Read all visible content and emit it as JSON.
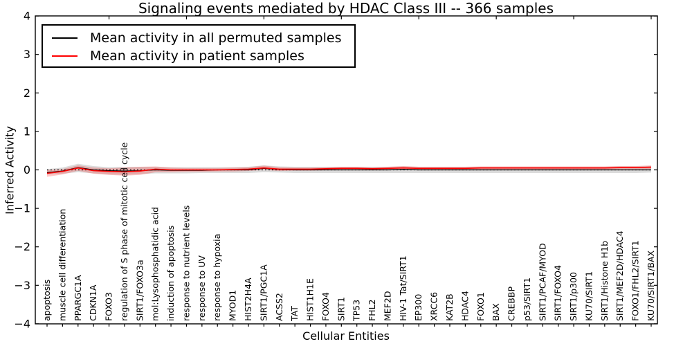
{
  "title": "Signaling events mediated by HDAC Class III -- 366 samples",
  "legend": {
    "items": [
      {
        "label": "Mean activity in all permuted samples",
        "color": "#000000"
      },
      {
        "label": "Mean activity in patient samples",
        "color": "#ff0000"
      }
    ]
  },
  "chart_data": {
    "type": "line",
    "title": "Signaling events mediated by HDAC Class III -- 366 samples",
    "xlabel": "Cellular Entities",
    "ylabel": "Inferred Activity",
    "ylim": [
      -4,
      4
    ],
    "yticks": [
      -4,
      -3,
      -2,
      -1,
      0,
      1,
      2,
      3,
      4
    ],
    "grid": false,
    "legend_position": "upper left",
    "categories": [
      "apoptosis",
      "muscle cell differentiation",
      "PPARGC1A",
      "CDKN1A",
      "FOXO3",
      "regulation of S phase of mitotic cell cycle",
      "SIRT1/FOXO3a",
      "mol:Lysophosphatidic acid",
      "induction of apoptosis",
      "response to nutrient levels",
      "response to UV",
      "response to hypoxia",
      "MYOD1",
      "HIST2H4A",
      "SIRT1/PGC1A",
      "ACSS2",
      "TAT",
      "HIST1H1E",
      "FOXO4",
      "SIRT1",
      "TP53",
      "FHL2",
      "MEF2D",
      "HIV-1 Tat/SIRT1",
      "EP300",
      "XRCC6",
      "KAT2B",
      "HDAC4",
      "FOXO1",
      "BAX",
      "CREBBP",
      "p53/SIRT1",
      "SIRT1/PCAF/MYOD",
      "SIRT1/FOXO4",
      "SIRT1/p300",
      "KU70/SIRT1",
      "SIRT1/Histone H1b",
      "SIRT1/MEF2D/HDAC4",
      "FOXO1/FHL2/SIRT1",
      "KU70/SIRT1/BAX"
    ],
    "series": [
      {
        "name": "Mean activity in all permuted samples",
        "color": "#000000",
        "style": "solid",
        "values": [
          -0.07,
          -0.03,
          0.06,
          0.0,
          -0.02,
          -0.03,
          -0.02,
          0.0,
          -0.01,
          -0.01,
          -0.01,
          0.0,
          0.0,
          0.0,
          0.04,
          0.01,
          0.0,
          0.0,
          0.0,
          0.0,
          0.0,
          0.0,
          0.0,
          0.01,
          0.0,
          0.0,
          0.0,
          0.0,
          0.0,
          0.0,
          0.0,
          0.0,
          0.0,
          0.0,
          0.0,
          0.0,
          0.0,
          0.0,
          0.0,
          0.0
        ]
      },
      {
        "name": "Mean activity in patient samples",
        "color": "#ff0000",
        "style": "solid",
        "values": [
          -0.09,
          -0.04,
          0.05,
          -0.02,
          -0.04,
          -0.05,
          -0.03,
          0.02,
          0.0,
          0.0,
          0.0,
          0.0,
          0.01,
          0.02,
          0.05,
          0.02,
          0.02,
          0.02,
          0.03,
          0.04,
          0.04,
          0.03,
          0.04,
          0.05,
          0.04,
          0.04,
          0.04,
          0.04,
          0.05,
          0.05,
          0.05,
          0.05,
          0.05,
          0.05,
          0.05,
          0.05,
          0.05,
          0.06,
          0.06,
          0.07
        ]
      }
    ],
    "bands": [
      {
        "name": "permuted samples range",
        "color": "#000000",
        "opacity": 0.14,
        "upper": [
          0.02,
          0.06,
          0.16,
          0.1,
          0.07,
          0.08,
          0.08,
          0.08,
          0.07,
          0.07,
          0.07,
          0.07,
          0.07,
          0.08,
          0.12,
          0.09,
          0.08,
          0.08,
          0.08,
          0.08,
          0.08,
          0.08,
          0.08,
          0.09,
          0.08,
          0.08,
          0.08,
          0.08,
          0.08,
          0.08,
          0.08,
          0.08,
          0.08,
          0.08,
          0.08,
          0.08,
          0.08,
          0.09,
          0.09,
          0.1
        ],
        "lower": [
          -0.12,
          -0.1,
          -0.06,
          -0.09,
          -0.12,
          -0.13,
          -0.11,
          -0.09,
          -0.09,
          -0.09,
          -0.08,
          -0.08,
          -0.08,
          -0.08,
          -0.06,
          -0.07,
          -0.08,
          -0.08,
          -0.08,
          -0.08,
          -0.08,
          -0.08,
          -0.08,
          -0.08,
          -0.08,
          -0.08,
          -0.08,
          -0.08,
          -0.08,
          -0.08,
          -0.08,
          -0.08,
          -0.08,
          -0.08,
          -0.08,
          -0.08,
          -0.08,
          -0.08,
          -0.08,
          -0.07
        ]
      },
      {
        "name": "patient samples range",
        "color": "#ff0000",
        "opacity": 0.22,
        "upper": [
          0.0,
          0.02,
          0.12,
          0.06,
          0.04,
          0.06,
          0.08,
          0.09,
          0.06,
          0.05,
          0.05,
          0.05,
          0.06,
          0.07,
          0.11,
          0.07,
          0.06,
          0.06,
          0.07,
          0.08,
          0.08,
          0.07,
          0.08,
          0.1,
          0.08,
          0.08,
          0.08,
          0.08,
          0.09,
          0.09,
          0.09,
          0.09,
          0.09,
          0.09,
          0.09,
          0.09,
          0.09,
          0.1,
          0.1,
          0.12
        ],
        "lower": [
          -0.18,
          -0.12,
          -0.02,
          -0.1,
          -0.13,
          -0.15,
          -0.13,
          -0.06,
          -0.06,
          -0.05,
          -0.05,
          -0.04,
          -0.04,
          -0.03,
          0.0,
          -0.03,
          -0.02,
          -0.02,
          -0.01,
          0.0,
          0.0,
          -0.01,
          0.0,
          0.0,
          0.0,
          0.0,
          0.0,
          0.0,
          0.01,
          0.01,
          0.01,
          0.01,
          0.01,
          0.01,
          0.01,
          0.01,
          0.01,
          0.02,
          0.02,
          0.02
        ]
      }
    ],
    "reference_line": {
      "y": 0,
      "style": "dotted",
      "color": "#000000"
    },
    "x_major_tick_every": 5
  }
}
